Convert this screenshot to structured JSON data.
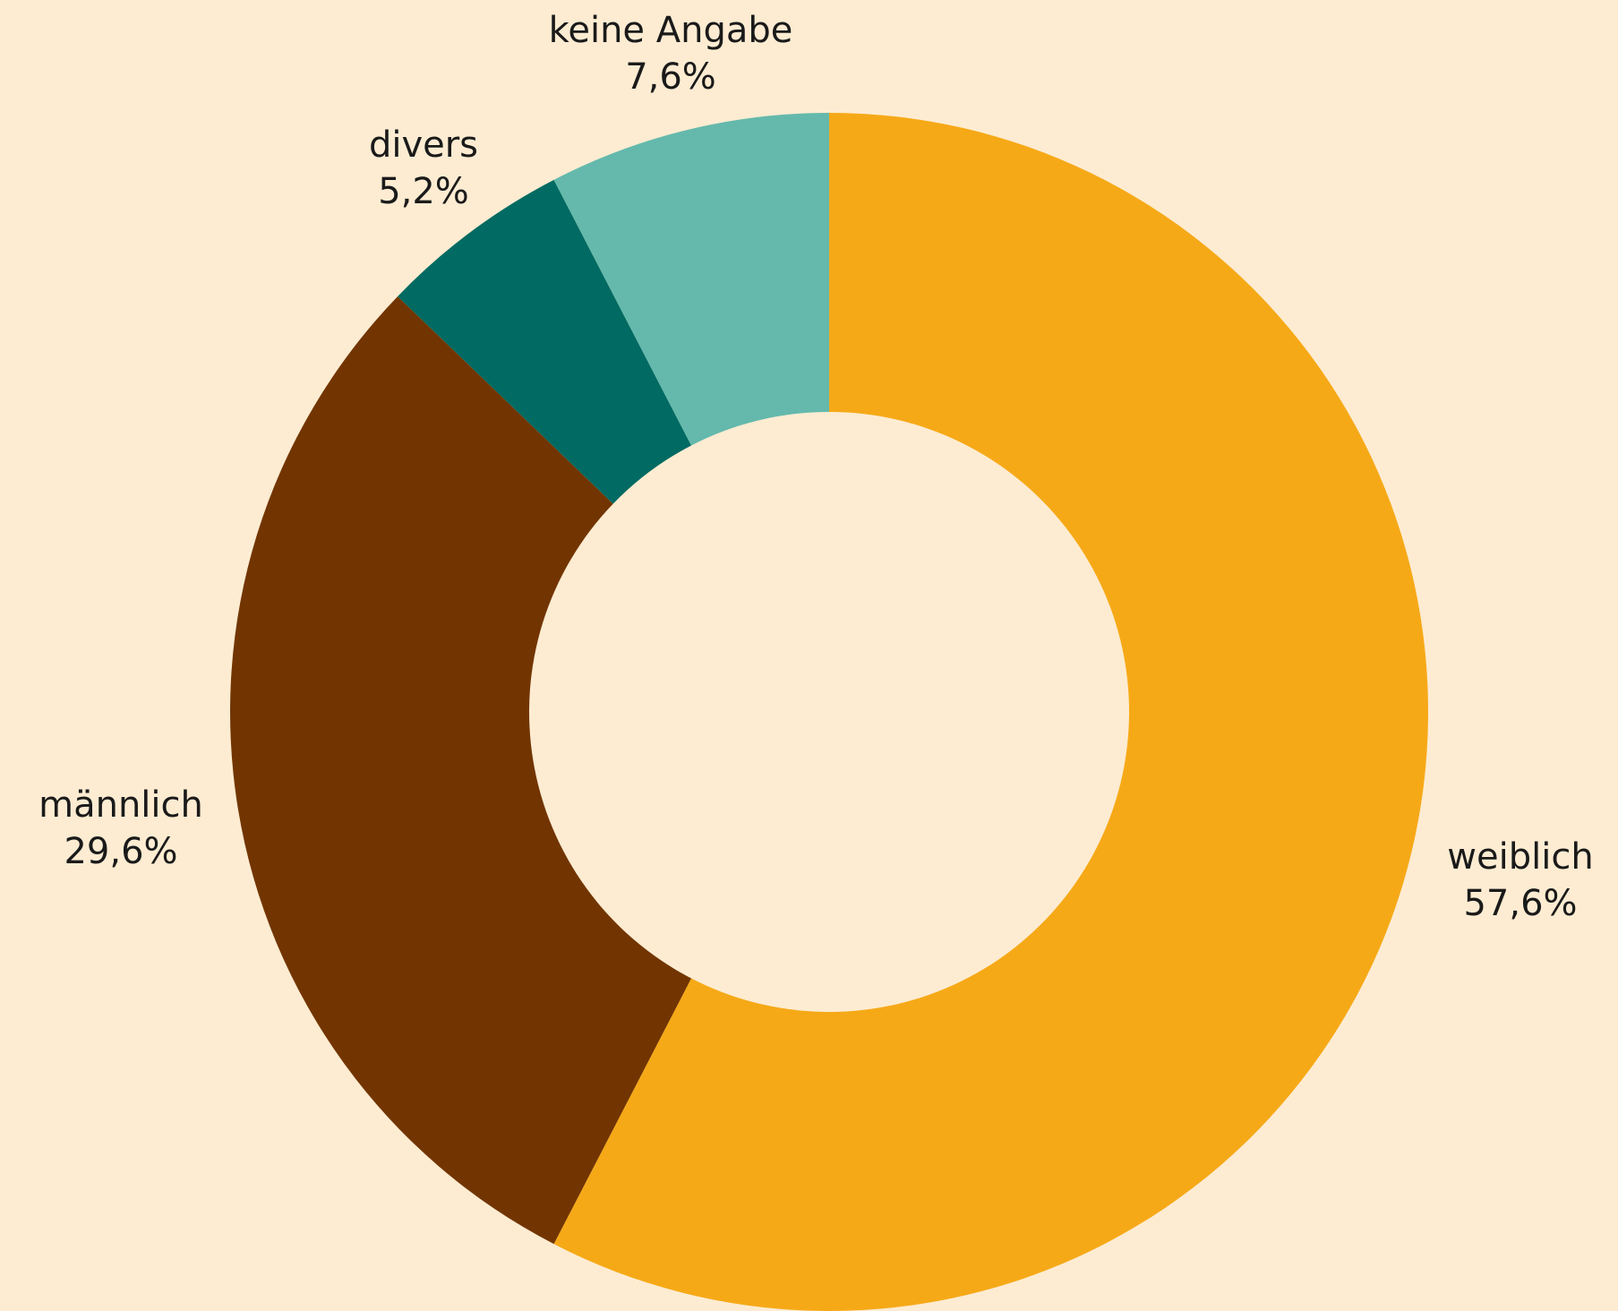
{
  "chart_data": {
    "type": "pie",
    "variant": "donut",
    "slices": [
      {
        "name": "weiblich",
        "value": 57.6,
        "label": "57,6%",
        "color": "#F6A917"
      },
      {
        "name": "männlich",
        "value": 29.6,
        "label": "29,6%",
        "color": "#723501"
      },
      {
        "name": "divers",
        "value": 5.2,
        "label": "5,2%",
        "color": "#016A62"
      },
      {
        "name": "keine Angabe",
        "value": 7.6,
        "label": "7,6%",
        "color": "#64B9AC"
      }
    ],
    "background": "#FDECD2",
    "start": "12 o'clock",
    "direction": "clockwise"
  }
}
